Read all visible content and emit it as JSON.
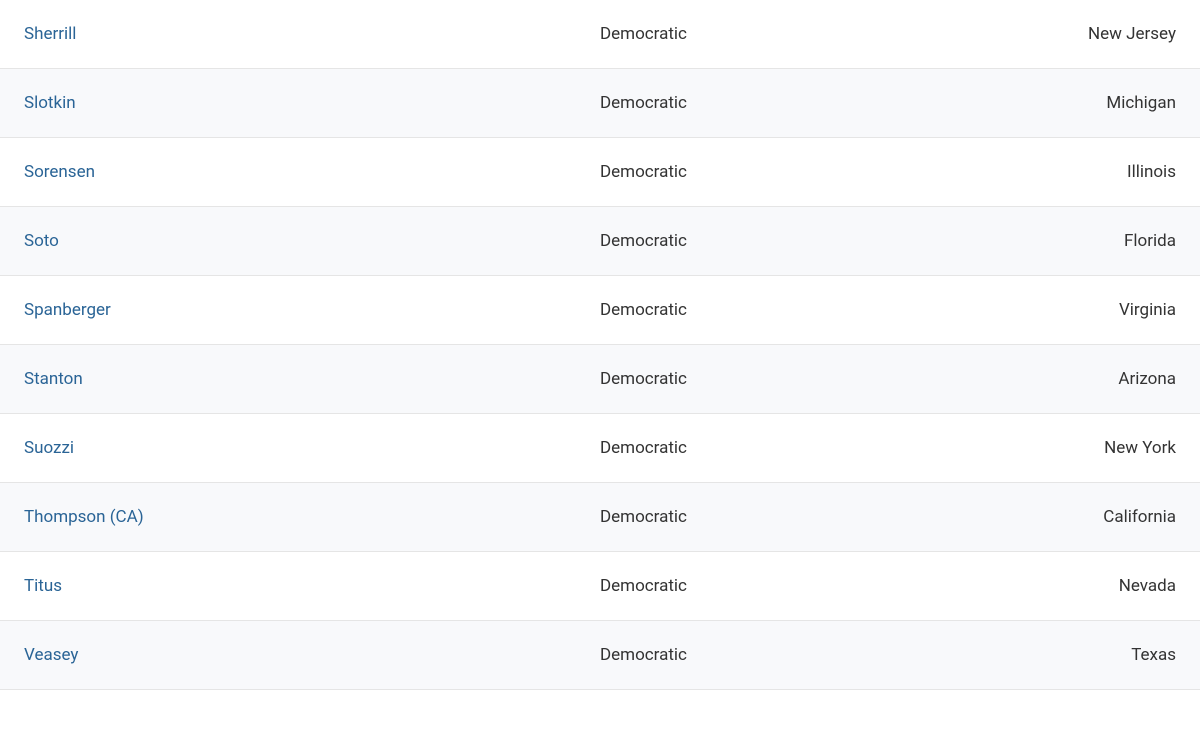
{
  "table": {
    "rows": [
      {
        "name": "Sherrill",
        "party": "Democratic",
        "state": "New Jersey"
      },
      {
        "name": "Slotkin",
        "party": "Democratic",
        "state": "Michigan"
      },
      {
        "name": "Sorensen",
        "party": "Democratic",
        "state": "Illinois"
      },
      {
        "name": "Soto",
        "party": "Democratic",
        "state": "Florida"
      },
      {
        "name": "Spanberger",
        "party": "Democratic",
        "state": "Virginia"
      },
      {
        "name": "Stanton",
        "party": "Democratic",
        "state": "Arizona"
      },
      {
        "name": "Suozzi",
        "party": "Democratic",
        "state": "New York"
      },
      {
        "name": "Thompson (CA)",
        "party": "Democratic",
        "state": "California"
      },
      {
        "name": "Titus",
        "party": "Democratic",
        "state": "Nevada"
      },
      {
        "name": "Veasey",
        "party": "Democratic",
        "state": "Texas"
      }
    ],
    "styling": {
      "link_color": "#2a6496",
      "text_color": "#333333",
      "border_color": "#e5e5e5",
      "row_alt_bg": "#f8f9fb",
      "row_bg": "#ffffff",
      "font_size": 17,
      "row_padding_v": 24,
      "row_padding_h": 24,
      "col_widths_pct": [
        50,
        30,
        20
      ]
    }
  }
}
